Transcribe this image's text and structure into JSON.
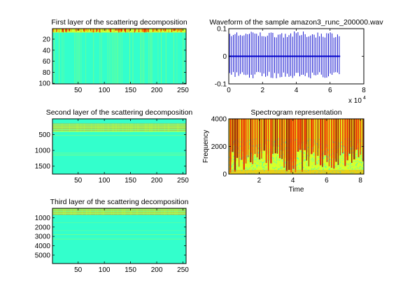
{
  "colors": {
    "jet_background": "#33ffcc",
    "jet_band_yellow": "#ccff33",
    "jet_band_orange": "#ff9900",
    "jet_band_red": "#ee1100",
    "jet_dark_red": "#990000",
    "waveform_line": "#0000cc",
    "spectrogram_bg": "#d8ff2a"
  },
  "chart_data": [
    {
      "type": "heatmap",
      "title": "First layer of the scattering decomposition",
      "xlabel": "",
      "ylabel": "",
      "xlim": [
        1,
        256
      ],
      "ylim": [
        101,
        1
      ],
      "xticks": [
        50,
        100,
        150,
        200,
        250
      ],
      "xtick_labels": [
        "50",
        "100",
        "150",
        "200",
        "250"
      ],
      "yticks": [
        20,
        40,
        60,
        80,
        100
      ],
      "ytick_labels": [
        "20",
        "40",
        "60",
        "80",
        "100"
      ],
      "colormap": "jet",
      "description_of_values": "high energy in top rows (indices about 1-8) with vertical streaks; remainder near minimum",
      "high_rows": [
        1,
        8
      ]
    },
    {
      "type": "line",
      "title": "Waveform of the sample amazon3_runc_200000.wav",
      "xlabel": "",
      "ylabel": "",
      "xlim": [
        0,
        80000
      ],
      "ylim": [
        -0.1,
        0.1
      ],
      "xticks": [
        0,
        2,
        4,
        6,
        8
      ],
      "xtick_labels": [
        "0",
        "2",
        "4",
        "6",
        "8"
      ],
      "x_exponent_label": "x 10",
      "x_exponent": "4",
      "yticks": [
        -0.1,
        0,
        0.1
      ],
      "ytick_labels": [
        "-0.1",
        "0",
        "0.1"
      ],
      "series": [
        {
          "x_range": [
            0,
            66000
          ],
          "amplitude_range": [
            -0.08,
            0.09
          ],
          "spikes_approx": 62
        }
      ]
    },
    {
      "type": "heatmap",
      "title": "Second layer of the scattering decomposition",
      "xlabel": "",
      "ylabel": "",
      "xlim": [
        1,
        256
      ],
      "ylim": [
        1750,
        1
      ],
      "xticks": [
        50,
        100,
        150,
        200,
        250
      ],
      "xtick_labels": [
        "50",
        "100",
        "150",
        "200",
        "250"
      ],
      "yticks": [
        500,
        1000,
        1500
      ],
      "ytick_labels": [
        "500",
        "1000",
        "1500"
      ],
      "colormap": "jet",
      "high_rows": [
        150,
        420
      ]
    },
    {
      "type": "heatmap",
      "title": "Spectrogram representation",
      "xlabel": "Time",
      "ylabel": "Frequency",
      "xlim": [
        0.2,
        8.2
      ],
      "ylim": [
        0,
        4000
      ],
      "xticks": [
        2,
        4,
        6,
        8
      ],
      "xtick_labels": [
        "2",
        "4",
        "6",
        "8"
      ],
      "yticks": [
        0,
        2000,
        4000
      ],
      "ytick_labels": [
        "0",
        "2000",
        "4000"
      ],
      "colormap": "jet"
    },
    {
      "type": "heatmap",
      "title": "Third layer of the scattering decomposition",
      "xlabel": "",
      "ylabel": "",
      "xlim": [
        1,
        256
      ],
      "ylim": [
        5900,
        1
      ],
      "xticks": [
        50,
        100,
        150,
        200,
        250
      ],
      "xtick_labels": [
        "50",
        "100",
        "150",
        "200",
        "250"
      ],
      "yticks": [
        1000,
        2000,
        3000,
        4000,
        5000
      ],
      "ytick_labels": [
        "1000",
        "2000",
        "3000",
        "4000",
        "5000"
      ],
      "colormap": "jet",
      "high_rows": [
        1,
        700
      ]
    }
  ]
}
